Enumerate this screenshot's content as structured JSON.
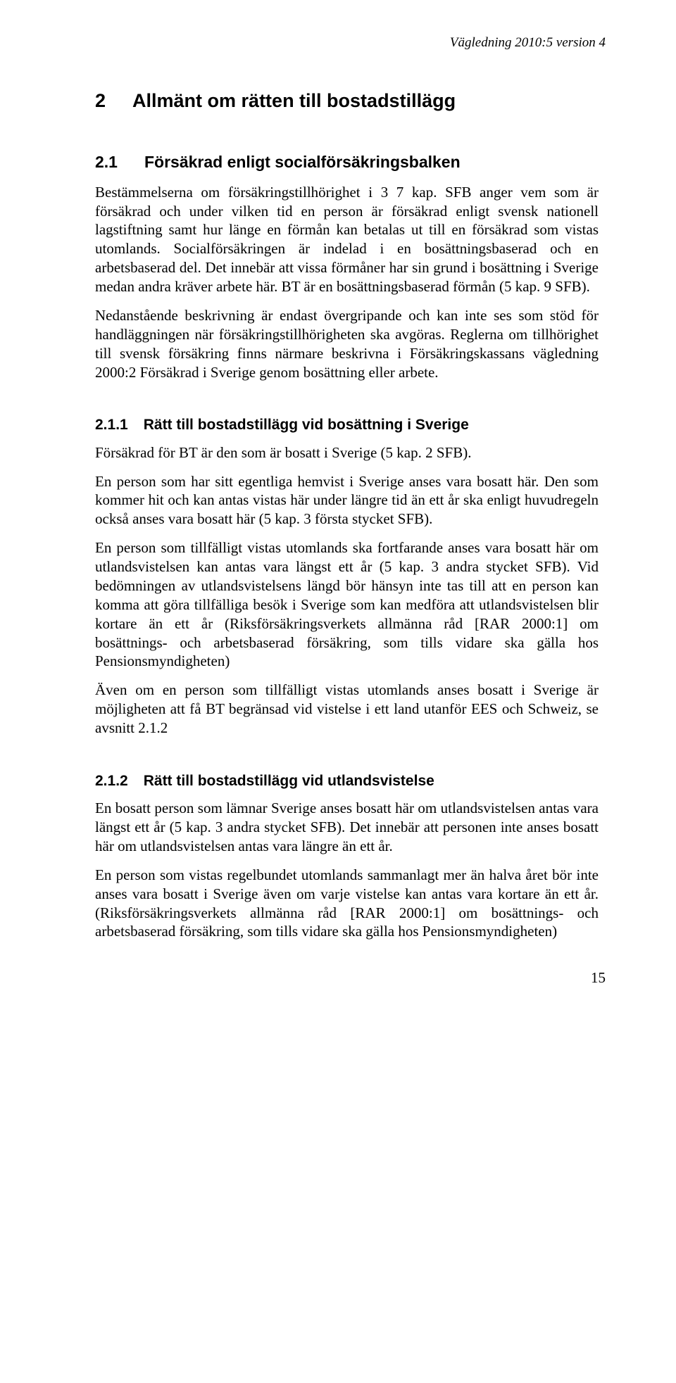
{
  "header": {
    "doc_ref": "Vägledning 2010:5 version 4"
  },
  "chapter": {
    "number": "2",
    "title": "Allmänt om rätten till bostadstillägg"
  },
  "section_2_1": {
    "number": "2.1",
    "title": "Försäkrad enligt socialförsäkringsbalken",
    "p1": "Bestämmelserna om försäkringstillhörighet i 3 7 kap. SFB anger vem som är försäkrad och under vilken tid en person är försäkrad enligt svensk nationell lagstiftning samt hur länge en förmån kan betalas ut till en försäkrad som vistas utomlands. Socialförsäkringen är indelad i en bosättningsbaserad och en arbetsbaserad del. Det innebär att vissa förmåner har sin grund i bosättning i Sverige medan andra kräver arbete här. BT är en bosättningsbaserad förmån (5 kap. 9 SFB).",
    "p2": "Nedanstående beskrivning är endast övergripande och kan inte ses som stöd för handläggningen när försäkringstillhörigheten ska avgöras. Reglerna om tillhörighet till svensk försäkring finns närmare beskrivna i Försäkringskassans vägledning 2000:2 Försäkrad i Sverige genom bosättning eller arbete."
  },
  "section_2_1_1": {
    "number": "2.1.1",
    "title": "Rätt till bostadstillägg vid bosättning i Sverige",
    "p1": "Försäkrad för BT är den som är bosatt i Sverige (5 kap. 2 SFB).",
    "p2": "En person som har sitt egentliga hemvist i Sverige anses vara bosatt här. Den som kommer hit och kan antas vistas här under längre tid än ett år ska enligt huvudregeln också anses vara bosatt här (5 kap. 3 första stycket SFB).",
    "p3": "En person som tillfälligt vistas utomlands ska fortfarande anses vara bosatt här om utlandsvistelsen kan antas vara längst ett år (5 kap. 3 andra stycket SFB). Vid bedömningen av utlandsvistelsens längd bör hänsyn inte tas till att en person kan komma att göra tillfälliga besök i Sverige som kan medföra att utlandsvistelsen blir kortare än ett år (Riksförsäkringsverkets allmänna råd [RAR 2000:1] om bosättnings- och arbetsbaserad försäkring, som tills vidare ska gälla hos Pensionsmyndigheten)",
    "p4": "Även om en person som tillfälligt vistas utomlands anses bosatt i Sverige är möjligheten att få BT begränsad vid vistelse i ett land utanför EES och Schweiz, se avsnitt 2.1.2"
  },
  "section_2_1_2": {
    "number": "2.1.2",
    "title": "Rätt till bostadstillägg vid utlandsvistelse",
    "p1": "En bosatt person som lämnar Sverige anses bosatt här om utlandsvistelsen antas vara längst ett år (5 kap. 3 andra stycket SFB). Det innebär att personen inte anses bosatt här om utlandsvistelsen antas vara längre än ett år.",
    "p2": "En person som vistas regelbundet utomlands sammanlagt mer än halva året bör inte anses vara bosatt i Sverige även om varje vistelse kan antas vara kortare än ett år. (Riksförsäkringsverkets allmänna råd [RAR 2000:1] om bosättnings- och arbetsbaserad försäkring, som tills vidare ska gälla hos Pensionsmyndigheten)"
  },
  "footer": {
    "page_number": "15"
  }
}
